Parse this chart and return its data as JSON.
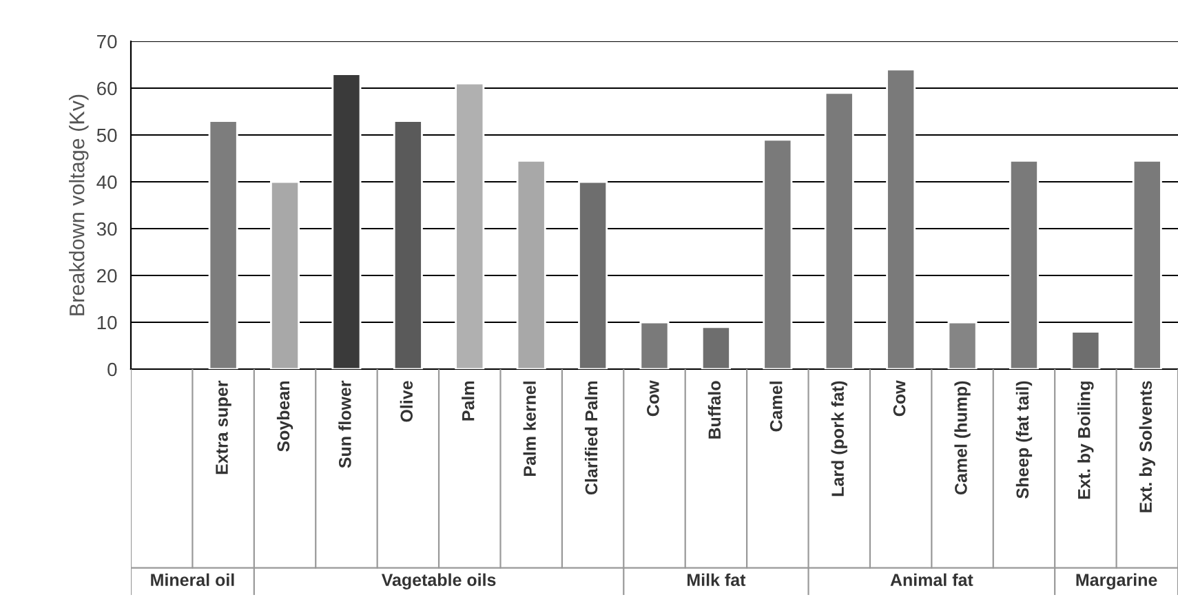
{
  "chart_data": {
    "type": "bar",
    "ylabel": "Breakdown voltage (Kv)",
    "categories": [
      null,
      "Extra super",
      "Soybean",
      "Sun flower",
      "Olive",
      "Palm",
      "Palm kernel",
      "Clarified Palm",
      "Cow",
      "Buffalo",
      "Camel",
      "Lard (pork fat)",
      "Cow",
      "Camel (hump)",
      "Sheep (fat tail)",
      "Ext. by Boiling",
      "Ext. by Solvents"
    ],
    "values": [
      null,
      53,
      40,
      63,
      53,
      61,
      44.5,
      40,
      10,
      9,
      49,
      59,
      64,
      10,
      44.5,
      8,
      44.5
    ],
    "colors": [
      "#808080",
      "#7d7d7d",
      "#a8a8a8",
      "#3a3a3a",
      "#5a5a5a",
      "#b0b0b0",
      "#a8a8a8",
      "#6e6e6e",
      "#7a7a7a",
      "#6e6e6e",
      "#7a7a7a",
      "#7a7a7a",
      "#7a7a7a",
      "#858585",
      "#7a7a7a",
      "#6e6e6e",
      "#7a7a7a"
    ],
    "ylim": [
      0,
      70
    ],
    "yticks": [
      0,
      10,
      20,
      30,
      40,
      50,
      60,
      70
    ],
    "grid": "y",
    "annotations": [
      "Mineral oil",
      "Vagetable oils",
      "Milk fat",
      "Animal fat",
      "Margarine"
    ]
  }
}
